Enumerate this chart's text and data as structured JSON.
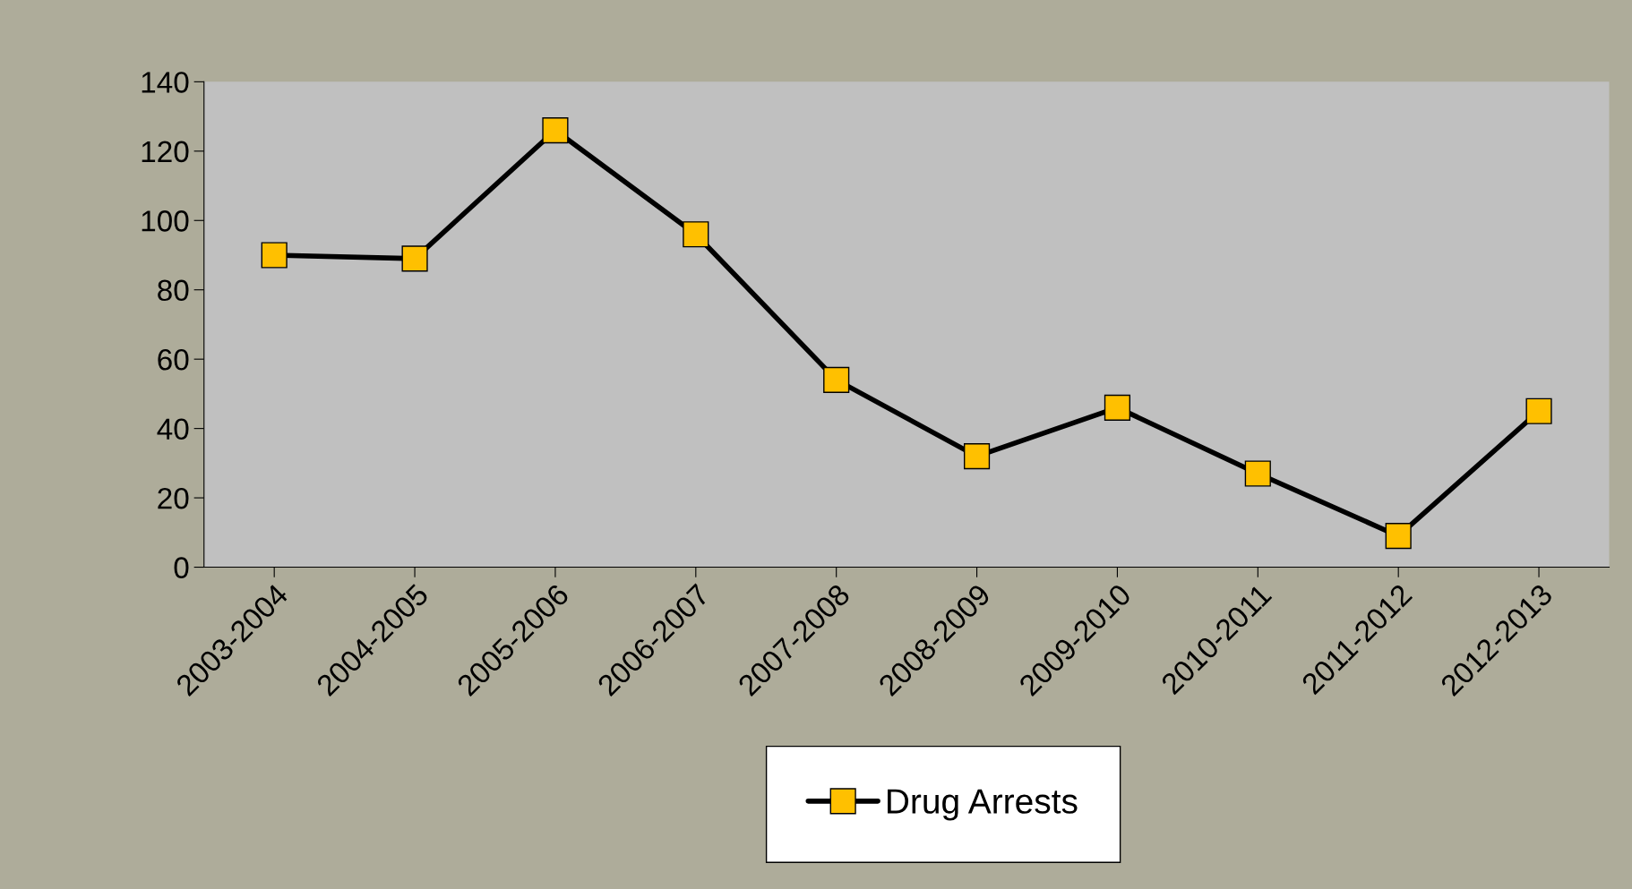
{
  "chart_data": {
    "type": "line",
    "categories": [
      "2003-2004",
      "2004-2005",
      "2005-2006",
      "2006-2007",
      "2007-2008",
      "2008-2009",
      "2009-2010",
      "2010-2011",
      "2011-2012",
      "2012-2013"
    ],
    "series": [
      {
        "name": "Drug Arrests",
        "color": "#ffc000",
        "values": [
          90,
          89,
          126,
          96,
          54,
          32,
          46,
          27,
          9,
          45
        ]
      }
    ],
    "ylim": [
      0,
      140
    ],
    "yticks": [
      0,
      20,
      40,
      60,
      80,
      100,
      120,
      140
    ],
    "marker": "square",
    "line_style": "solid",
    "grid": false,
    "legend": "bottom"
  }
}
